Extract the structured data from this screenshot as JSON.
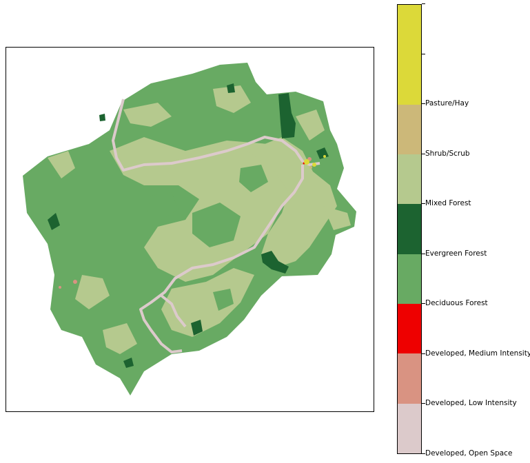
{
  "legend": {
    "classes": [
      {
        "label": "Developed, Open Space",
        "color": "#dccacb"
      },
      {
        "label": "Developed, Low Intensity",
        "color": "#d99382"
      },
      {
        "label": "Developed, Medium Intensity",
        "color": "#ee0000"
      },
      {
        "label": "Deciduous Forest",
        "color": "#68aa63"
      },
      {
        "label": "Evergreen Forest",
        "color": "#1c6330"
      },
      {
        "label": "Mixed Forest",
        "color": "#b5c98e"
      },
      {
        "label": "Shrub/Scrub",
        "color": "#ccb879"
      },
      {
        "label": "Pasture/Hay",
        "color": "#dcd939"
      }
    ]
  },
  "map": {
    "name": "land-cover-map"
  }
}
